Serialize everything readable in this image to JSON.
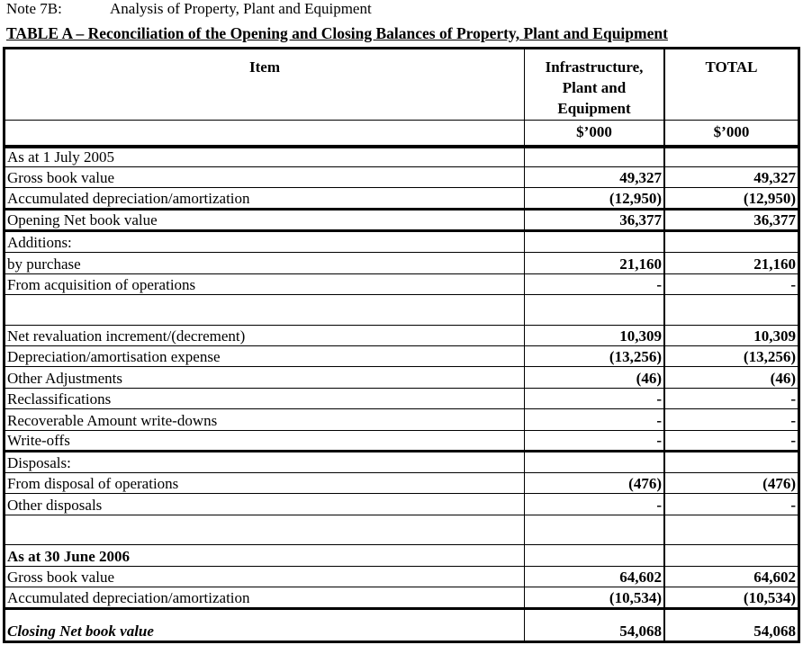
{
  "note": {
    "label": "Note 7B:",
    "title": "Analysis of Property, Plant and Equipment"
  },
  "table_title": "TABLE A – Reconciliation of the Opening and Closing Balances of Property, Plant and Equipment",
  "headers": {
    "item": "Item",
    "col1": "Infrastructure, Plant and Equipment",
    "col2": "TOTAL",
    "unit1": "$’000",
    "unit2": "$’000"
  },
  "rows": [
    {
      "label": "As at 1 July 2005",
      "v1": "",
      "v2": ""
    },
    {
      "label": "Gross book value",
      "v1": "49,327",
      "v2": "49,327"
    },
    {
      "label": "Accumulated depreciation/amortization",
      "v1": "(12,950)",
      "v2": "(12,950)"
    },
    {
      "label": "Opening Net book value",
      "v1": "36,377",
      "v2": "36,377"
    },
    {
      "label": "Additions:",
      "v1": "",
      "v2": ""
    },
    {
      "label": "by purchase",
      "v1": "21,160",
      "v2": "21,160"
    },
    {
      "label": "From acquisition of operations",
      "v1": "-",
      "v2": "-"
    },
    {
      "label": "",
      "v1": "",
      "v2": ""
    },
    {
      "label": "Net revaluation increment/(decrement)",
      "v1": "10,309",
      "v2": "10,309"
    },
    {
      "label": "Depreciation/amortisation expense",
      "v1": "(13,256)",
      "v2": "(13,256)"
    },
    {
      "label": "Other Adjustments",
      "v1": "(46)",
      "v2": "(46)"
    },
    {
      "label": "Reclassifications",
      "v1": "-",
      "v2": "-"
    },
    {
      "label": "Recoverable Amount write-downs",
      "v1": "-",
      "v2": "-"
    },
    {
      "label": "Write-offs",
      "v1": "-",
      "v2": "-"
    },
    {
      "label": "Disposals:",
      "v1": "",
      "v2": ""
    },
    {
      "label": "From disposal of operations",
      "v1": "(476)",
      "v2": "(476)"
    },
    {
      "label": "Other disposals",
      "v1": "-",
      "v2": "-"
    },
    {
      "label": "",
      "v1": "",
      "v2": ""
    },
    {
      "label": "As at 30 June 2006",
      "v1": "",
      "v2": ""
    },
    {
      "label": "Gross book value",
      "v1": "64,602",
      "v2": "64,602"
    },
    {
      "label": "Accumulated depreciation/amortization",
      "v1": "(10,534)",
      "v2": "(10,534)"
    },
    {
      "label": "Closing Net book value",
      "v1": "54,068",
      "v2": "54,068"
    }
  ]
}
